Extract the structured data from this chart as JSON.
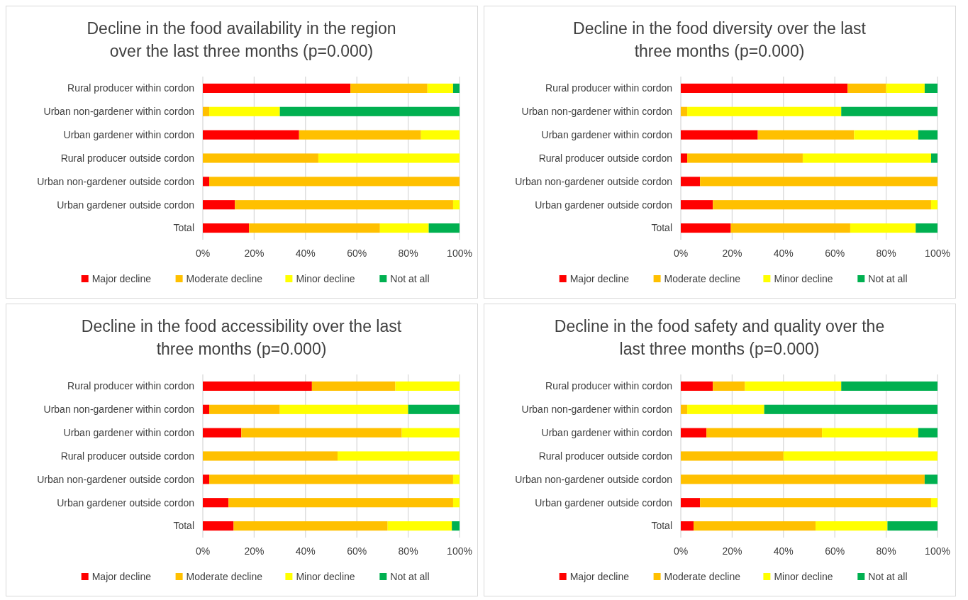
{
  "chart_data": [
    {
      "type": "bar",
      "orientation": "horizontal",
      "stacked": true,
      "title": "Decline in the food availability in the region over the last three months (p=0.000)",
      "categories": [
        "Rural producer within cordon",
        "Urban non-gardener within cordon",
        "Urban gardener within cordon",
        "Rural producer outside cordon",
        "Urban non-gardener outside cordon",
        "Urban gardener outside cordon",
        "Total"
      ],
      "series": [
        {
          "name": "Major decline",
          "color": "#ff0000",
          "values": [
            57.5,
            null,
            37.5,
            null,
            2.5,
            12.5,
            18
          ]
        },
        {
          "name": "Moderate decline",
          "color": "#ffc000",
          "values": [
            30,
            2.5,
            47.5,
            45,
            97.5,
            85,
            51
          ]
        },
        {
          "name": "Minor decline",
          "color": "#ffff00",
          "values": [
            10,
            27.5,
            15,
            55,
            null,
            2.5,
            19
          ]
        },
        {
          "name": "Not at all",
          "color": "#00b050",
          "values": [
            2.5,
            70,
            null,
            null,
            null,
            null,
            12
          ]
        }
      ],
      "xlim": [
        0,
        100
      ],
      "xticks": [
        {
          "value": 0,
          "label": "0%"
        },
        {
          "value": 20,
          "label": "20%"
        },
        {
          "value": 40,
          "label": "40%"
        },
        {
          "value": 60,
          "label": "60%"
        },
        {
          "value": 80,
          "label": "80%"
        },
        {
          "value": 100,
          "label": "100%"
        }
      ],
      "grid": "x",
      "legend": "bottom"
    },
    {
      "type": "bar",
      "orientation": "horizontal",
      "stacked": true,
      "title": "Decline in the food diversity over the last three months (p=0.000)",
      "categories": [
        "Rural producer within cordon",
        "Urban non-gardener within cordon",
        "Urban gardener within cordon",
        "Rural producer outside cordon",
        "Urban non-gardener outside cordon",
        "Urban gardener outside cordon",
        "Total"
      ],
      "series": [
        {
          "name": "Major decline",
          "color": "#ff0000",
          "values": [
            65,
            null,
            30,
            2.5,
            7.5,
            12.5,
            19.5
          ]
        },
        {
          "name": "Moderate decline",
          "color": "#ffc000",
          "values": [
            15,
            2.5,
            37.5,
            45,
            92.5,
            85,
            46.5
          ]
        },
        {
          "name": "Minor decline",
          "color": "#ffff00",
          "values": [
            15,
            60,
            25,
            50,
            null,
            2.5,
            25.5
          ]
        },
        {
          "name": "Not at all",
          "color": "#00b050",
          "values": [
            5,
            37.5,
            7.5,
            2.5,
            null,
            null,
            8.5
          ]
        }
      ],
      "xlim": [
        0,
        100
      ],
      "xticks": [
        {
          "value": 0,
          "label": "0%"
        },
        {
          "value": 20,
          "label": "20%"
        },
        {
          "value": 40,
          "label": "40%"
        },
        {
          "value": 60,
          "label": "60%"
        },
        {
          "value": 80,
          "label": "80%"
        },
        {
          "value": 100,
          "label": "100%"
        }
      ],
      "grid": "x",
      "legend": "bottom"
    },
    {
      "type": "bar",
      "orientation": "horizontal",
      "stacked": true,
      "title": "Decline in the food accessibility over the last three months (p=0.000)",
      "categories": [
        "Rural producer within cordon",
        "Urban non-gardener within cordon",
        "Urban gardener within cordon",
        "Rural producer outside cordon",
        "Urban non-gardener outside cordon",
        "Urban gardener outside cordon",
        "Total"
      ],
      "series": [
        {
          "name": "Major decline",
          "color": "#ff0000",
          "values": [
            42.5,
            2.5,
            15,
            null,
            2.5,
            10,
            12
          ]
        },
        {
          "name": "Moderate decline",
          "color": "#ffc000",
          "values": [
            32.5,
            27.5,
            62.5,
            52.5,
            95,
            87.5,
            60
          ]
        },
        {
          "name": "Minor decline",
          "color": "#ffff00",
          "values": [
            25,
            50,
            22.5,
            47.5,
            2.5,
            2.5,
            25
          ]
        },
        {
          "name": "Not at all",
          "color": "#00b050",
          "values": [
            null,
            20,
            null,
            null,
            null,
            null,
            3
          ]
        }
      ],
      "xlim": [
        0,
        100
      ],
      "xticks": [
        {
          "value": 0,
          "label": "0%"
        },
        {
          "value": 20,
          "label": "20%"
        },
        {
          "value": 40,
          "label": "40%"
        },
        {
          "value": 60,
          "label": "60%"
        },
        {
          "value": 80,
          "label": "80%"
        },
        {
          "value": 100,
          "label": "100%"
        }
      ],
      "grid": "x",
      "legend": "bottom"
    },
    {
      "type": "bar",
      "orientation": "horizontal",
      "stacked": true,
      "title": "Decline in the food safety and quality over the last three months (p=0.000)",
      "categories": [
        "Rural producer within cordon",
        "Urban non-gardener within cordon",
        "Urban gardener within cordon",
        "Rural producer outside cordon",
        "Urban non-gardener outside cordon",
        "Urban gardener outside cordon",
        "Total"
      ],
      "series": [
        {
          "name": "Major decline",
          "color": "#ff0000",
          "values": [
            12.5,
            null,
            10,
            null,
            null,
            7.5,
            5
          ]
        },
        {
          "name": "Moderate decline",
          "color": "#ffc000",
          "values": [
            12.5,
            2.5,
            45,
            40,
            95,
            90,
            47.5
          ]
        },
        {
          "name": "Minor decline",
          "color": "#ffff00",
          "values": [
            37.5,
            30,
            37.5,
            60,
            null,
            2.5,
            28
          ]
        },
        {
          "name": "Not at all",
          "color": "#00b050",
          "values": [
            37.5,
            67.5,
            7.5,
            null,
            5,
            null,
            19.5
          ]
        }
      ],
      "xlim": [
        0,
        100
      ],
      "xticks": [
        {
          "value": 0,
          "label": "0%"
        },
        {
          "value": 20,
          "label": "20%"
        },
        {
          "value": 40,
          "label": "40%"
        },
        {
          "value": 60,
          "label": "60%"
        },
        {
          "value": 80,
          "label": "80%"
        },
        {
          "value": 100,
          "label": "100%"
        }
      ],
      "grid": "x",
      "legend": "bottom"
    }
  ]
}
